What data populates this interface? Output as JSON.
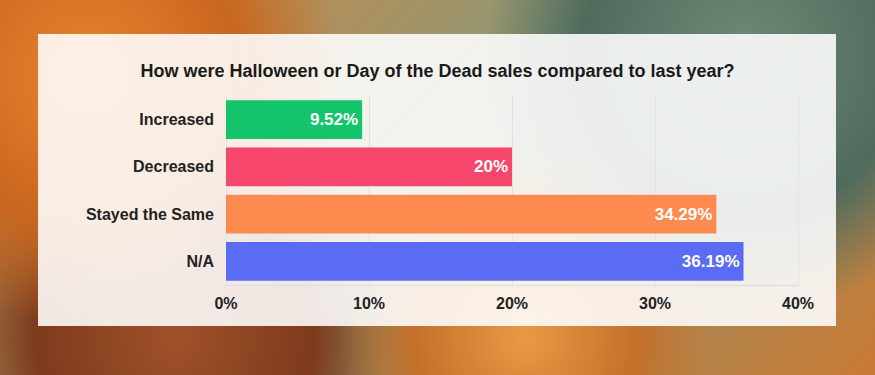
{
  "chart_data": {
    "type": "bar",
    "orientation": "horizontal",
    "title": "How were Halloween or Day of the Dead sales compared to last year?",
    "categories": [
      "Increased",
      "Decreased",
      "Stayed the Same",
      "N/A"
    ],
    "values": [
      9.52,
      20,
      34.29,
      36.19
    ],
    "value_labels": [
      "9.52%",
      "20%",
      "34.29%",
      "36.19%"
    ],
    "colors": [
      "#14c46a",
      "#f7466c",
      "#fd8a4f",
      "#5a6cf3"
    ],
    "data_labels": true,
    "xlim": [
      0,
      40
    ],
    "xticks": [
      {
        "value": 0,
        "label": "0%"
      },
      {
        "value": 10,
        "label": "10%"
      },
      {
        "value": 20,
        "label": "20%"
      },
      {
        "value": 30,
        "label": "30%"
      },
      {
        "value": 40,
        "label": "40%"
      }
    ],
    "grid": true
  }
}
